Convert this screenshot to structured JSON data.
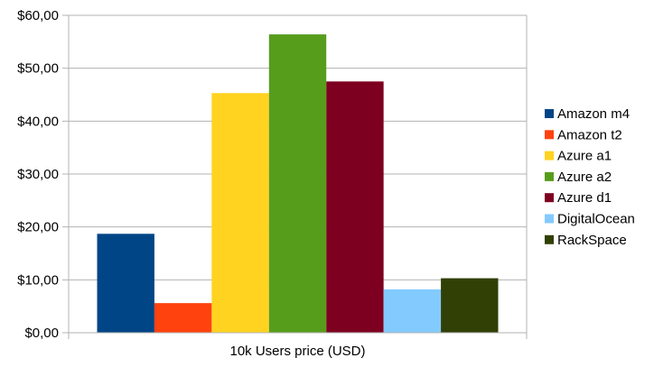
{
  "chart_data": {
    "type": "bar",
    "categories": [
      "10k Users price (USD)"
    ],
    "series": [
      {
        "name": "Amazon m4",
        "values": [
          18.7
        ],
        "color": "#004586"
      },
      {
        "name": "Amazon t2",
        "values": [
          5.6
        ],
        "color": "#ff420e"
      },
      {
        "name": "Azure a1",
        "values": [
          45.3
        ],
        "color": "#ffd320"
      },
      {
        "name": "Azure a2",
        "values": [
          56.4
        ],
        "color": "#579d1c"
      },
      {
        "name": "Azure d1",
        "values": [
          47.5
        ],
        "color": "#7e0021"
      },
      {
        "name": "DigitalOcean",
        "values": [
          8.2
        ],
        "color": "#83caff"
      },
      {
        "name": "RackSpace",
        "values": [
          10.3
        ],
        "color": "#314004"
      }
    ],
    "title": "",
    "xlabel": "",
    "ylabel": "",
    "ylim": [
      0,
      60
    ],
    "yticks": [
      0,
      10,
      20,
      30,
      40,
      50,
      60
    ],
    "ytick_labels": [
      "$0,00",
      "$10,00",
      "$20,00",
      "$30,00",
      "$40,00",
      "$50,00",
      "$60,00"
    ],
    "grid": true,
    "legend_position": "right"
  }
}
